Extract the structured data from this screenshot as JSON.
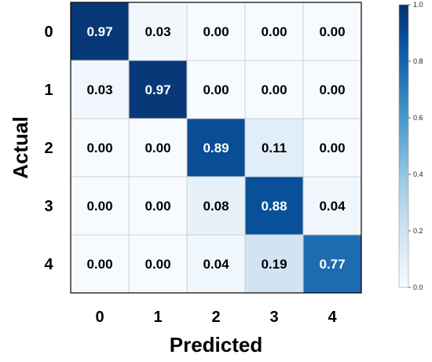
{
  "chart_data": {
    "type": "heatmap",
    "title": "",
    "xlabel": "Predicted",
    "ylabel": "Actual",
    "x_categories": [
      "0",
      "1",
      "2",
      "3",
      "4"
    ],
    "y_categories": [
      "0",
      "1",
      "2",
      "3",
      "4"
    ],
    "values": [
      [
        0.97,
        0.03,
        0.0,
        0.0,
        0.0
      ],
      [
        0.03,
        0.97,
        0.0,
        0.0,
        0.0
      ],
      [
        0.0,
        0.0,
        0.89,
        0.11,
        0.0
      ],
      [
        0.0,
        0.0,
        0.08,
        0.88,
        0.04
      ],
      [
        0.0,
        0.0,
        0.04,
        0.19,
        0.77
      ]
    ],
    "colorbar": {
      "range": [
        0.0,
        1.0
      ],
      "ticks": [
        "0.0",
        "0.2",
        "0.4",
        "0.6",
        "0.8",
        "1.0"
      ],
      "colormap": "Blues"
    },
    "grid": true
  }
}
